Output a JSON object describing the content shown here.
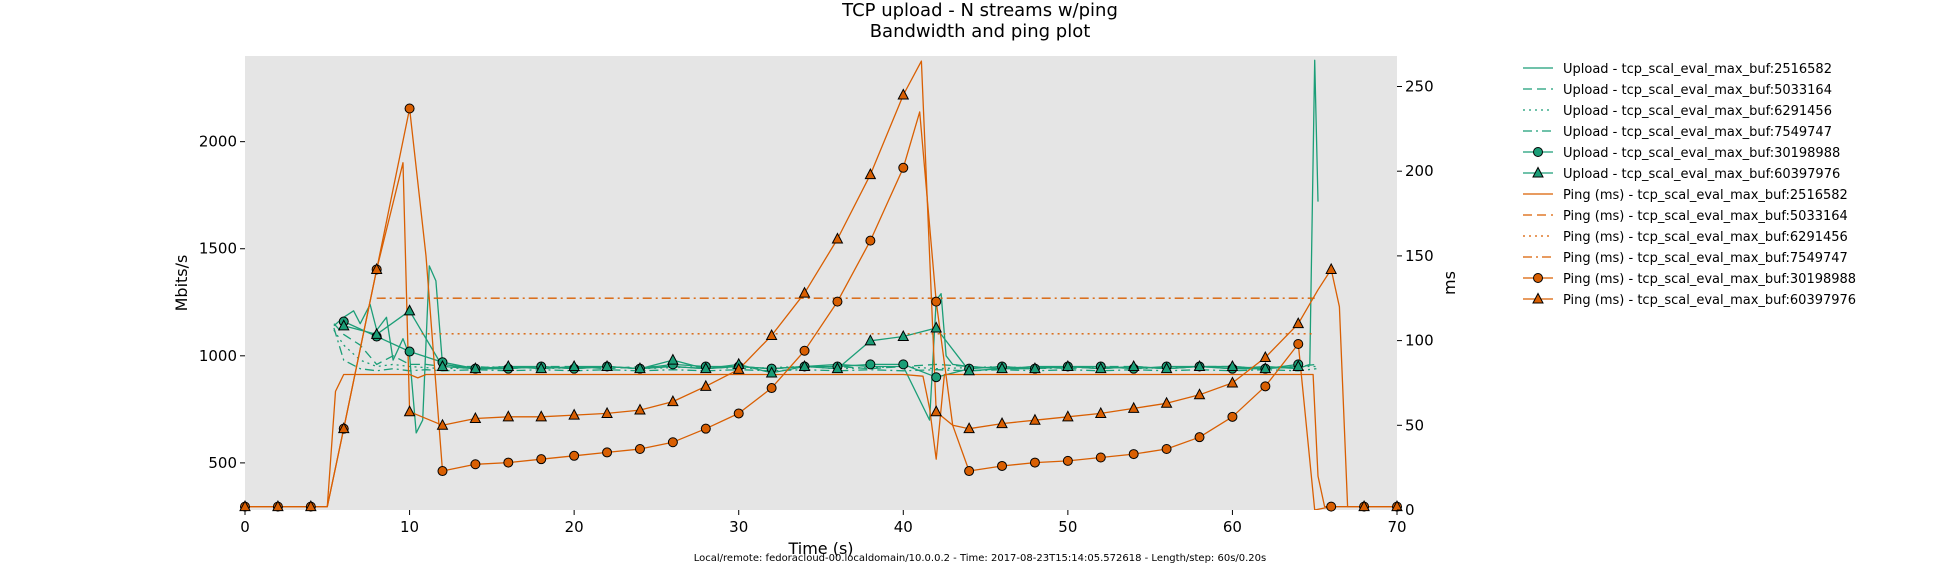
{
  "chart_data": {
    "type": "line",
    "title": "TCP upload - N streams w/ping",
    "subtitle": "Bandwidth and ping plot",
    "xlabel": "Time (s)",
    "ylabel": "Mbits/s",
    "y2label": "ms",
    "footer": "Local/remote: fedoracloud-00.localdomain/10.0.0.2 - Time: 2017-08-23T15:14:05.572618 - Length/step: 60s/0.20s",
    "xlim": [
      0,
      70
    ],
    "ylim": [
      280,
      2400
    ],
    "y2lim": [
      0,
      268
    ],
    "xticks": [
      0,
      10,
      20,
      30,
      40,
      50,
      60,
      70
    ],
    "yticks": [
      500,
      1000,
      1500,
      2000
    ],
    "y2ticks": [
      0,
      50,
      100,
      150,
      200,
      250
    ],
    "grid": false,
    "legend_position": "outside-right",
    "colors": {
      "upload": "#1b9e77",
      "ping": "#d95f02",
      "plot_bg": "#e5e5e5"
    },
    "series": [
      {
        "name": "Upload - tcp_scal_eval_max_buf:2516582",
        "axis": "left",
        "dash": "solid",
        "marker": "none",
        "x": [
          5.4,
          6,
          6.6,
          7,
          7.6,
          8,
          8.6,
          9,
          9.6,
          10,
          10.4,
          10.8,
          11.2,
          11.6,
          12,
          14,
          16,
          18,
          20,
          22,
          24,
          26,
          28,
          30,
          32,
          34,
          36,
          38,
          40,
          41.6,
          42,
          42.3,
          42.6,
          43,
          44,
          46,
          48,
          50,
          52,
          54,
          56,
          58,
          60,
          62,
          64,
          64.7,
          65.0,
          65.2
        ],
        "y": [
          1140,
          1180,
          1210,
          1150,
          1240,
          1120,
          1180,
          980,
          1080,
          1000,
          640,
          700,
          1420,
          1350,
          960,
          940,
          950,
          950,
          940,
          950,
          940,
          950,
          940,
          950,
          940,
          950,
          960,
          950,
          950,
          700,
          1260,
          1290,
          1000,
          960,
          950,
          940,
          950,
          950,
          940,
          950,
          940,
          950,
          940,
          950,
          940,
          960,
          2380,
          1720
        ]
      },
      {
        "name": "Upload - tcp_scal_eval_max_buf:5033164",
        "axis": "left",
        "dash": "long-dash",
        "marker": "none",
        "x": [
          5.4,
          6,
          7,
          8,
          9,
          10,
          11,
          12,
          14,
          16,
          18,
          20,
          22,
          24,
          26,
          28,
          30,
          32,
          34,
          36,
          38,
          40,
          42,
          44,
          46,
          48,
          50,
          52,
          54,
          56,
          58,
          60,
          62,
          64,
          65.1
        ],
        "y": [
          1150,
          1100,
          1050,
          960,
          1000,
          960,
          960,
          950,
          950,
          940,
          950,
          950,
          940,
          950,
          950,
          940,
          950,
          940,
          950,
          950,
          940,
          950,
          960,
          950,
          940,
          950,
          940,
          950,
          950,
          940,
          950,
          950,
          940,
          950,
          960
        ]
      },
      {
        "name": "Upload - tcp_scal_eval_max_buf:6291456",
        "axis": "left",
        "dash": "dotted",
        "marker": "none",
        "x": [
          5.4,
          6,
          7,
          8,
          9,
          10,
          11,
          12,
          14,
          16,
          18,
          20,
          22,
          24,
          26,
          28,
          30,
          32,
          34,
          36,
          38,
          40,
          42,
          44,
          46,
          48,
          50,
          52,
          54,
          56,
          58,
          60,
          62,
          64,
          65.1
        ],
        "y": [
          1120,
          1050,
          980,
          950,
          960,
          950,
          945,
          940,
          945,
          950,
          940,
          945,
          950,
          940,
          945,
          950,
          940,
          945,
          950,
          940,
          945,
          950,
          940,
          945,
          950,
          940,
          945,
          950,
          940,
          945,
          950,
          940,
          945,
          950,
          950
        ]
      },
      {
        "name": "Upload - tcp_scal_eval_max_buf:7549747",
        "axis": "left",
        "dash": "dash-dot",
        "marker": "none",
        "x": [
          5.4,
          6,
          7,
          8,
          9,
          10,
          11,
          12,
          14,
          16,
          18,
          20,
          22,
          24,
          26,
          28,
          30,
          32,
          34,
          36,
          38,
          40,
          42,
          44,
          46,
          48,
          50,
          52,
          54,
          56,
          58,
          60,
          62,
          64,
          65.1
        ],
        "y": [
          1130,
          980,
          940,
          930,
          940,
          930,
          935,
          930,
          935,
          930,
          935,
          930,
          935,
          930,
          935,
          930,
          935,
          930,
          935,
          930,
          935,
          930,
          935,
          930,
          935,
          930,
          935,
          930,
          935,
          930,
          935,
          930,
          935,
          930,
          940
        ]
      },
      {
        "name": "Upload - tcp_scal_eval_max_buf:30198988",
        "axis": "left",
        "dash": "solid",
        "marker": "circle",
        "x": [
          6,
          8,
          10,
          12,
          14,
          16,
          18,
          20,
          22,
          24,
          26,
          28,
          30,
          32,
          34,
          36,
          38,
          40,
          42,
          44,
          46,
          48,
          50,
          52,
          54,
          56,
          58,
          60,
          62,
          64
        ],
        "y": [
          1160,
          1090,
          1020,
          970,
          940,
          940,
          950,
          940,
          950,
          940,
          960,
          950,
          950,
          940,
          950,
          950,
          960,
          960,
          900,
          940,
          950,
          940,
          950,
          950,
          940,
          950,
          950,
          940,
          940,
          960
        ]
      },
      {
        "name": "Upload - tcp_scal_eval_max_buf:60397976",
        "axis": "left",
        "dash": "solid",
        "marker": "triangle",
        "x": [
          6,
          8,
          10,
          12,
          14,
          16,
          18,
          20,
          22,
          24,
          26,
          28,
          30,
          32,
          34,
          36,
          38,
          40,
          42,
          44,
          46,
          48,
          50,
          52,
          54,
          56,
          58,
          60,
          62,
          64
        ],
        "y": [
          1140,
          1100,
          1210,
          950,
          940,
          950,
          940,
          950,
          950,
          940,
          980,
          940,
          960,
          920,
          950,
          940,
          1070,
          1090,
          1130,
          930,
          940,
          940,
          950,
          940,
          950,
          940,
          950,
          950,
          940,
          950
        ]
      },
      {
        "name": "Ping (ms) - tcp_scal_eval_max_buf:2516582",
        "axis": "right",
        "dash": "solid",
        "marker": "none",
        "x": [
          0,
          5,
          5.5,
          6,
          10,
          10.5,
          11,
          20,
          30,
          40,
          41.2,
          41.6,
          42,
          42.5,
          60,
          64.9,
          65.2,
          65.6,
          66,
          70
        ],
        "y": [
          2,
          2,
          70,
          80,
          80,
          78,
          80,
          80,
          80,
          80,
          79,
          60,
          30,
          80,
          80,
          80,
          20,
          2,
          2,
          2
        ]
      },
      {
        "name": "Ping (ms) - tcp_scal_eval_max_buf:5033164",
        "axis": "right",
        "dash": "long-dash",
        "marker": "none",
        "x": [],
        "y": []
      },
      {
        "name": "Ping (ms) - tcp_scal_eval_max_buf:6291456",
        "axis": "right",
        "dash": "dotted",
        "marker": "none",
        "x": [
          10,
          65
        ],
        "y": [
          104,
          104
        ]
      },
      {
        "name": "Ping (ms) - tcp_scal_eval_max_buf:7549747",
        "axis": "right",
        "dash": "dash-dot",
        "marker": "none",
        "x": [
          8,
          65
        ],
        "y": [
          125,
          125
        ]
      },
      {
        "name": "Ping (ms) - tcp_scal_eval_max_buf:30198988",
        "axis": "right",
        "dash": "solid",
        "marker": "circle",
        "x": [
          0,
          2,
          4,
          5,
          6,
          8,
          10,
          11,
          12,
          14,
          16,
          18,
          20,
          22,
          24,
          26,
          28,
          30,
          32,
          34,
          36,
          38,
          40,
          41,
          42,
          43,
          44,
          46,
          48,
          50,
          52,
          54,
          56,
          58,
          60,
          62,
          64,
          65,
          66,
          68,
          70
        ],
        "y": [
          2,
          2,
          2,
          2,
          48,
          142,
          237,
          150,
          23,
          27,
          28,
          30,
          32,
          34,
          36,
          40,
          48,
          57,
          72,
          94,
          123,
          159,
          202,
          235,
          123,
          50,
          23,
          26,
          28,
          29,
          31,
          33,
          36,
          43,
          55,
          73,
          98,
          0,
          2,
          2,
          2
        ]
      },
      {
        "name": "Ping (ms) - tcp_scal_eval_max_buf:60397976",
        "axis": "right",
        "dash": "solid",
        "marker": "triangle",
        "x": [
          0,
          2,
          4,
          5,
          6,
          8,
          9.6,
          10,
          12,
          14,
          16,
          18,
          20,
          22,
          24,
          26,
          28,
          30,
          32,
          34,
          36,
          38,
          40,
          41.1,
          42,
          43,
          44,
          46,
          48,
          50,
          52,
          54,
          56,
          58,
          60,
          62,
          64,
          65.2,
          66,
          66.5,
          67,
          68,
          70
        ],
        "y": [
          2,
          2,
          2,
          2,
          48,
          142,
          205,
          58,
          50,
          54,
          55,
          55,
          56,
          57,
          59,
          64,
          73,
          83,
          103,
          128,
          160,
          198,
          245,
          265,
          58,
          50,
          48,
          51,
          53,
          55,
          57,
          60,
          63,
          68,
          75,
          90,
          110,
          130,
          142,
          120,
          2,
          2,
          2
        ]
      }
    ]
  }
}
